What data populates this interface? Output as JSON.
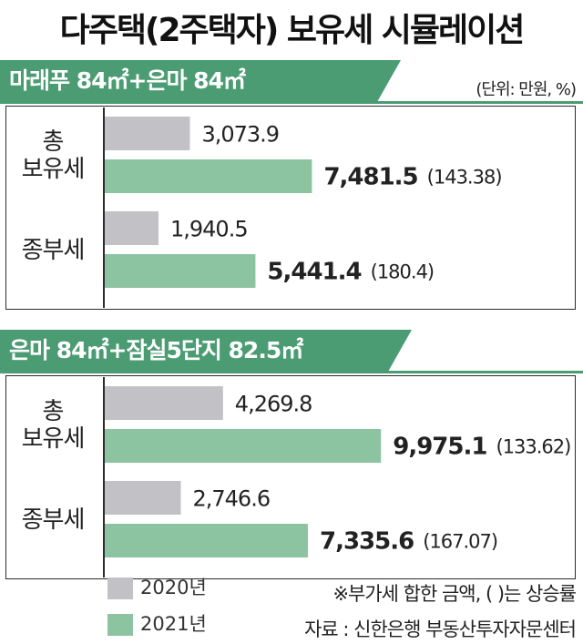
{
  "title": "다주택(2주택자) 보유세 시뮬레이션",
  "unit_note": "(단위: 만원, %)",
  "footnote": "※부가세 합한 금액, (   )는 상승률",
  "source": "자료 : 신한은행 부동산투자자문센터",
  "colors": {
    "y2020": "#c2c2c6",
    "y2021": "#8cc4a2",
    "banner": "#4b9b73"
  },
  "legend": [
    {
      "label": "2020년",
      "color": "#c2c2c6"
    },
    {
      "label": "2021년",
      "color": "#8cc4a2"
    }
  ],
  "chart_data": [
    {
      "type": "bar",
      "title": "마래푸 84㎡+은마 84㎡",
      "categories": [
        "총\n보유세",
        "종부세"
      ],
      "series": [
        {
          "name": "2020년",
          "values": [
            3073.9,
            1940.5
          ],
          "labels": [
            "3,073.9",
            "1,940.5"
          ]
        },
        {
          "name": "2021년",
          "values": [
            7481.5,
            5441.4
          ],
          "labels": [
            "7,481.5",
            "5,441.4"
          ],
          "growth": [
            "(143.38)",
            "(180.4)"
          ]
        }
      ],
      "xlim": [
        0,
        10000
      ]
    },
    {
      "type": "bar",
      "title": "은마 84㎡+잠실5단지 82.5㎡",
      "categories": [
        "총\n보유세",
        "종부세"
      ],
      "series": [
        {
          "name": "2020년",
          "values": [
            4269.8,
            2746.6
          ],
          "labels": [
            "4,269.8",
            "2,746.6"
          ]
        },
        {
          "name": "2021년",
          "values": [
            9975.1,
            7335.6
          ],
          "labels": [
            "9,975.1",
            "7,335.6"
          ],
          "growth": [
            "(133.62)",
            "(167.07)"
          ]
        }
      ],
      "xlim": [
        0,
        10000
      ]
    }
  ]
}
